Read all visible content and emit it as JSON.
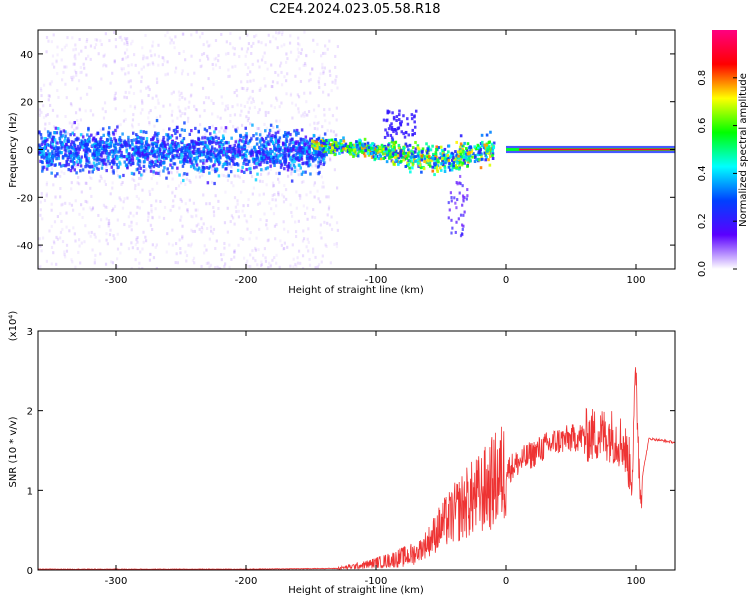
{
  "title": "C2E4.2024.023.05.58.R18",
  "chart_data": [
    {
      "type": "heatmap",
      "xlabel": "Height of straight line (km)",
      "ylabel": "Frequency (Hz)",
      "xlim": [
        -360,
        130
      ],
      "ylim": [
        -50,
        50
      ],
      "x_ticks": [
        -300,
        -200,
        -100,
        0,
        100
      ],
      "y_ticks": [
        -40,
        -20,
        0,
        20,
        40
      ],
      "colorbar": {
        "label": "Normalized spectral amplitude",
        "range": [
          0,
          1
        ],
        "ticks": [
          "0.0",
          "0.2",
          "0.4",
          "0.6",
          "0.8"
        ],
        "colormap": [
          "#ffffff",
          "#5a00ff",
          "#0040ff",
          "#00ffff",
          "#00ff00",
          "#ffff00",
          "#ff0000",
          "#ff0080"
        ]
      },
      "ridge": {
        "description_free_points": [
          [
            -150,
            2
          ],
          [
            -120,
            1.5
          ],
          [
            -100,
            0.5
          ],
          [
            -80,
            -2
          ],
          [
            -60,
            -3
          ],
          [
            -45,
            -4
          ],
          [
            -30,
            -1
          ],
          [
            -10,
            1
          ],
          [
            0,
            2
          ],
          [
            10,
            0
          ],
          [
            60,
            0
          ],
          [
            100,
            0
          ],
          [
            130,
            0
          ]
        ]
      }
    },
    {
      "type": "line",
      "xlabel": "Height of straight line (km)",
      "ylabel": "SNR (10 * v/v)",
      "y_multiplier": "(x10⁴)",
      "xlim": [
        -360,
        130
      ],
      "ylim": [
        0,
        3
      ],
      "x_ticks": [
        -300,
        -200,
        -100,
        0,
        100
      ],
      "y_ticks": [
        0,
        1,
        2,
        3
      ],
      "color": "#ee3333",
      "envelope": [
        [
          -360,
          0.01
        ],
        [
          -200,
          0.01
        ],
        [
          -130,
          0.02
        ],
        [
          -110,
          0.06
        ],
        [
          -90,
          0.12
        ],
        [
          -70,
          0.2
        ],
        [
          -60,
          0.35
        ],
        [
          -50,
          0.55
        ],
        [
          -40,
          0.7
        ],
        [
          -30,
          0.85
        ],
        [
          -20,
          0.95
        ],
        [
          -10,
          1.1
        ],
        [
          0,
          1.25
        ],
        [
          10,
          1.35
        ],
        [
          20,
          1.45
        ],
        [
          30,
          1.55
        ],
        [
          40,
          1.62
        ],
        [
          50,
          1.65
        ],
        [
          60,
          1.68
        ],
        [
          70,
          1.7
        ],
        [
          80,
          1.7
        ],
        [
          90,
          1.6
        ],
        [
          97,
          1.2
        ],
        [
          100,
          2.5
        ],
        [
          103,
          1.0
        ],
        [
          110,
          1.65
        ],
        [
          130,
          1.6
        ]
      ]
    }
  ]
}
